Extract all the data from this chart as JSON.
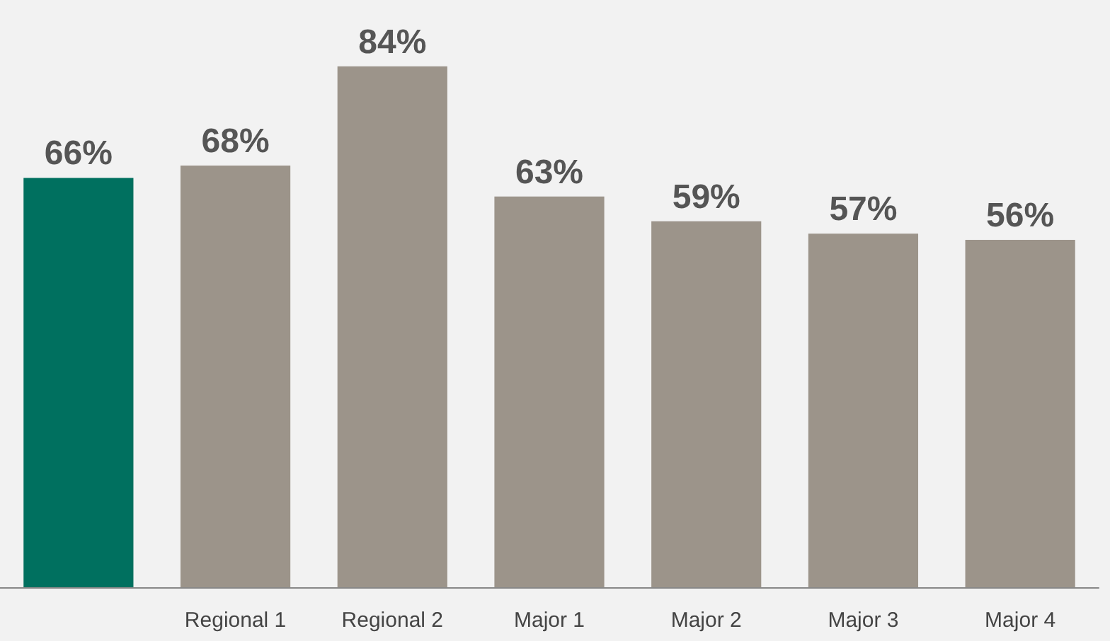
{
  "chart_data": {
    "type": "bar",
    "categories": [
      null,
      "Regional 1",
      "Regional 2",
      "Major 1",
      "Major 2",
      "Major 3",
      "Major 4"
    ],
    "values": [
      66,
      68,
      84,
      63,
      59,
      57,
      56
    ],
    "colors": [
      "#00705f",
      "#9c948a",
      "#9c948a",
      "#9c948a",
      "#9c948a",
      "#9c948a",
      "#9c948a"
    ],
    "value_labels": [
      "66%",
      "68%",
      "84%",
      "63%",
      "59%",
      "57%",
      "56%"
    ]
  }
}
